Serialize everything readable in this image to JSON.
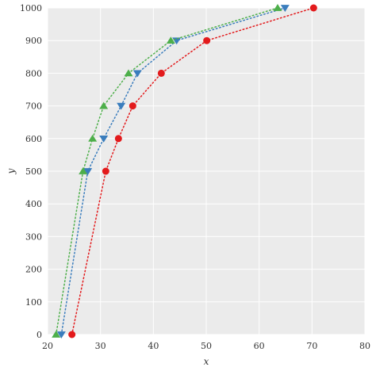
{
  "chart_data": {
    "type": "line",
    "xlabel": "x",
    "ylabel": "y",
    "xlim": [
      20,
      80
    ],
    "ylim": [
      0,
      1000
    ],
    "x_ticks": [
      20,
      30,
      40,
      50,
      60,
      70,
      80
    ],
    "y_ticks": [
      0,
      100,
      200,
      300,
      400,
      500,
      600,
      700,
      800,
      900,
      1000
    ],
    "grid": true,
    "legend": "none",
    "background_color": "#ebebeb",
    "grid_color": "#ffffff",
    "series": [
      {
        "marker": "circle",
        "color": "#e31a1c",
        "line_style": "dotted",
        "points": [
          {
            "x": 24.6,
            "y": 0
          },
          {
            "x": 31.0,
            "y": 500
          },
          {
            "x": 33.4,
            "y": 600
          },
          {
            "x": 36.1,
            "y": 700
          },
          {
            "x": 41.5,
            "y": 800
          },
          {
            "x": 50.1,
            "y": 900
          },
          {
            "x": 70.3,
            "y": 1000
          }
        ]
      },
      {
        "marker": "triangle-down",
        "color": "#3a7dbd",
        "line_style": "dotted",
        "points": [
          {
            "x": 22.6,
            "y": 0
          },
          {
            "x": 27.6,
            "y": 500
          },
          {
            "x": 30.6,
            "y": 600
          },
          {
            "x": 33.9,
            "y": 700
          },
          {
            "x": 37.0,
            "y": 800
          },
          {
            "x": 44.4,
            "y": 900
          },
          {
            "x": 64.9,
            "y": 1000
          }
        ]
      },
      {
        "marker": "triangle-up",
        "color": "#4daf4a",
        "line_style": "dotted",
        "points": [
          {
            "x": 21.6,
            "y": 0
          },
          {
            "x": 26.7,
            "y": 500
          },
          {
            "x": 28.5,
            "y": 600
          },
          {
            "x": 30.6,
            "y": 700
          },
          {
            "x": 35.3,
            "y": 800
          },
          {
            "x": 43.3,
            "y": 900
          },
          {
            "x": 63.5,
            "y": 1000
          }
        ]
      }
    ]
  }
}
